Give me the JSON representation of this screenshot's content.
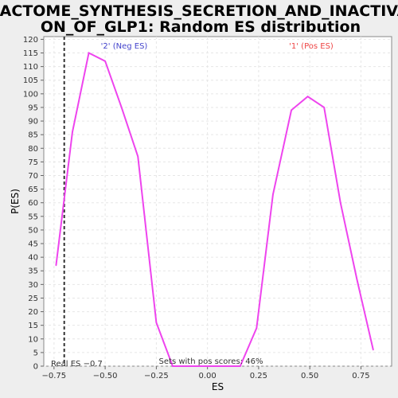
{
  "chart_data": {
    "type": "line",
    "title_line1": "REACTOME_SYNTHESIS_SECRETION_AND_INACTIVATI",
    "title_line2": "ON_OF_GLP1: Random ES distribution",
    "xlabel": "ES",
    "ylabel": "P(ES)",
    "xlim": [
      -0.8,
      0.9
    ],
    "ylim": [
      0,
      121
    ],
    "grid": true,
    "x_ticks": [
      -0.75,
      -0.5,
      -0.25,
      0.0,
      0.25,
      0.5,
      0.75
    ],
    "x_tick_labels": [
      "−0.75",
      "−0.50",
      "−0.25",
      "0.00",
      "0.25",
      "0.50",
      "0.75"
    ],
    "y_ticks": [
      0,
      5,
      10,
      15,
      20,
      25,
      30,
      35,
      40,
      45,
      50,
      55,
      60,
      65,
      70,
      75,
      80,
      85,
      90,
      95,
      100,
      105,
      110,
      115,
      120
    ],
    "series": [
      {
        "name": "",
        "color": "#ee44ee",
        "x": [
          -0.74,
          -0.66,
          -0.58,
          -0.5,
          -0.42,
          -0.34,
          -0.25,
          -0.17,
          -0.09,
          0.0,
          0.08,
          0.16,
          0.24,
          0.32,
          0.41,
          0.49,
          0.57,
          0.65,
          0.73,
          0.81
        ],
        "y": [
          37,
          86,
          115,
          112,
          95,
          77,
          16,
          0,
          0,
          0,
          0,
          0,
          14,
          63,
          94,
          99,
          95,
          60,
          32,
          6
        ]
      }
    ],
    "real_es": {
      "value": -0.7,
      "label": "Real ES −0.7"
    },
    "annotations": {
      "neg": {
        "text": "'2' (Neg ES)",
        "color": "#4444cc"
      },
      "pos": {
        "text": "'1' (Pos ES)",
        "color": "#ee4444"
      },
      "sets": {
        "text": "Sets with pos scores: 46%",
        "color": "#333333"
      }
    }
  }
}
